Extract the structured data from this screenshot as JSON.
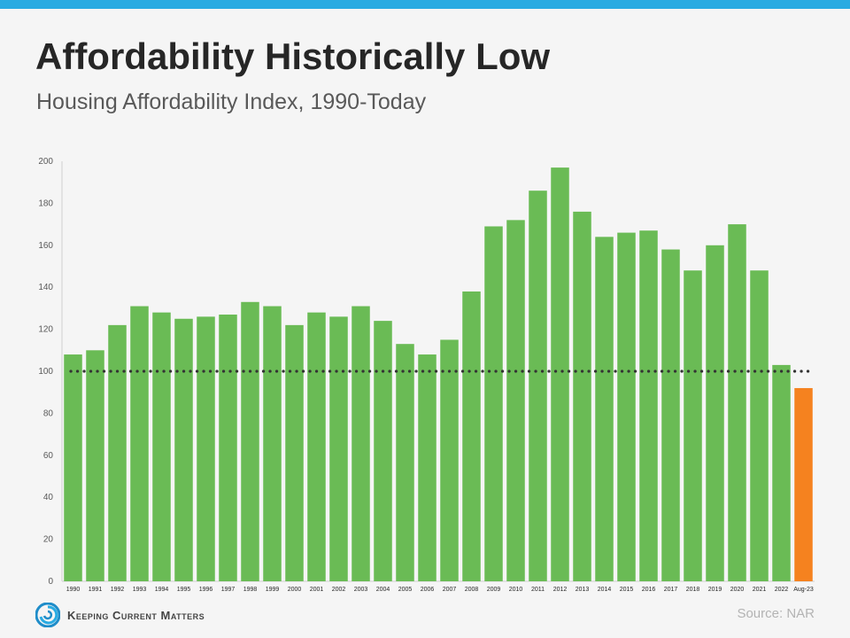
{
  "title": "Affordability Historically Low",
  "subtitle": "Housing Affordability Index, 1990-Today",
  "source": "Source: NAR",
  "logo": {
    "text": "Keeping Current Matters"
  },
  "colors": {
    "accent_bar": "#29abe2",
    "bar_default": "#6abb55",
    "bar_highlight": "#f5821f",
    "reference_line": "#333333"
  },
  "chart_data": {
    "type": "bar",
    "title": "Affordability Historically Low",
    "subtitle": "Housing Affordability Index, 1990-Today",
    "xlabel": "",
    "ylabel": "",
    "ylim": [
      0,
      200
    ],
    "yticks": [
      0,
      20,
      40,
      60,
      80,
      100,
      120,
      140,
      160,
      180,
      200
    ],
    "grid": false,
    "reference_line": 100,
    "highlight_category": "Aug-23",
    "categories": [
      "1990",
      "1991",
      "1992",
      "1993",
      "1994",
      "1995",
      "1996",
      "1997",
      "1998",
      "1999",
      "2000",
      "2001",
      "2002",
      "2003",
      "2004",
      "2005",
      "2006",
      "2007",
      "2008",
      "2009",
      "2010",
      "2011",
      "2012",
      "2013",
      "2014",
      "2015",
      "2016",
      "2017",
      "2018",
      "2019",
      "2020",
      "2021",
      "2022",
      "Aug-23"
    ],
    "values": [
      108,
      110,
      122,
      131,
      128,
      125,
      126,
      127,
      133,
      131,
      122,
      128,
      126,
      131,
      124,
      113,
      108,
      115,
      138,
      169,
      172,
      186,
      197,
      176,
      164,
      166,
      167,
      158,
      148,
      160,
      170,
      148,
      103,
      92
    ]
  }
}
